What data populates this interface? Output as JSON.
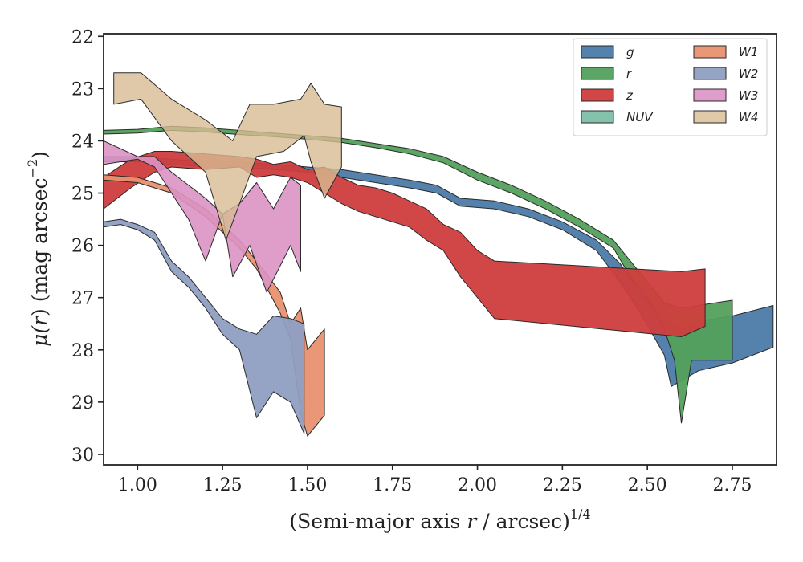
{
  "chart_data": {
    "type": "area",
    "xlabel_main": "(Semi-major axis ",
    "xlabel_var": "r",
    "xlabel_tail": " / arcsec)",
    "xlabel_sup": "1/4",
    "ylabel_main": "μ(",
    "ylabel_var": "r",
    "ylabel_tail": ") (mag arcsec",
    "ylabel_sup": "−2",
    "ylabel_close": ")",
    "xlim": [
      0.9,
      2.88
    ],
    "ylim": [
      30.2,
      21.95
    ],
    "y_inverted": true,
    "xticks": [
      1.0,
      1.25,
      1.5,
      1.75,
      2.0,
      2.25,
      2.5,
      2.75
    ],
    "xtick_labels": [
      "1.00",
      "1.25",
      "1.50",
      "1.75",
      "2.00",
      "2.25",
      "2.50",
      "2.75"
    ],
    "yticks": [
      22,
      23,
      24,
      25,
      26,
      27,
      28,
      29,
      30
    ],
    "ytick_labels": [
      "22",
      "23",
      "24",
      "25",
      "26",
      "27",
      "28",
      "29",
      "30"
    ],
    "grid": false,
    "legend_position": "top-right",
    "legend_columns": 2,
    "series": [
      {
        "name": "g",
        "color": "#4c7ba8",
        "opacity": 0.95,
        "upper": [
          [
            0.9,
            24.3
          ],
          [
            1.0,
            24.3
          ],
          [
            1.1,
            24.35
          ],
          [
            1.2,
            24.4
          ],
          [
            1.3,
            24.4
          ],
          [
            1.4,
            24.45
          ],
          [
            1.5,
            24.5
          ],
          [
            1.6,
            24.55
          ],
          [
            1.7,
            24.65
          ],
          [
            1.8,
            24.75
          ],
          [
            1.88,
            24.85
          ],
          [
            1.95,
            25.1
          ],
          [
            2.05,
            25.15
          ],
          [
            2.15,
            25.3
          ],
          [
            2.25,
            25.55
          ],
          [
            2.35,
            25.9
          ],
          [
            2.42,
            26.35
          ],
          [
            2.48,
            26.9
          ],
          [
            2.55,
            27.4
          ],
          [
            2.6,
            27.6
          ],
          [
            2.65,
            27.45
          ],
          [
            2.75,
            27.35
          ],
          [
            2.87,
            27.15
          ]
        ],
        "lower": [
          [
            0.9,
            24.4
          ],
          [
            1.0,
            24.4
          ],
          [
            1.1,
            24.45
          ],
          [
            1.2,
            24.5
          ],
          [
            1.3,
            24.5
          ],
          [
            1.4,
            24.55
          ],
          [
            1.5,
            24.6
          ],
          [
            1.6,
            24.7
          ],
          [
            1.7,
            24.8
          ],
          [
            1.8,
            24.9
          ],
          [
            1.88,
            25.0
          ],
          [
            1.95,
            25.25
          ],
          [
            2.05,
            25.3
          ],
          [
            2.15,
            25.45
          ],
          [
            2.25,
            25.7
          ],
          [
            2.35,
            26.1
          ],
          [
            2.42,
            26.7
          ],
          [
            2.48,
            27.3
          ],
          [
            2.55,
            28.1
          ],
          [
            2.57,
            28.7
          ],
          [
            2.65,
            28.4
          ],
          [
            2.75,
            28.25
          ],
          [
            2.87,
            27.95
          ]
        ]
      },
      {
        "name": "r",
        "color": "#53a05c",
        "opacity": 0.95,
        "upper": [
          [
            0.9,
            23.8
          ],
          [
            1.0,
            23.78
          ],
          [
            1.1,
            23.72
          ],
          [
            1.2,
            23.75
          ],
          [
            1.3,
            23.8
          ],
          [
            1.4,
            23.85
          ],
          [
            1.5,
            23.9
          ],
          [
            1.6,
            23.95
          ],
          [
            1.7,
            24.05
          ],
          [
            1.8,
            24.15
          ],
          [
            1.9,
            24.3
          ],
          [
            2.0,
            24.6
          ],
          [
            2.1,
            24.85
          ],
          [
            2.2,
            25.15
          ],
          [
            2.3,
            25.5
          ],
          [
            2.4,
            25.9
          ],
          [
            2.45,
            26.3
          ],
          [
            2.5,
            26.7
          ],
          [
            2.55,
            27.1
          ],
          [
            2.6,
            27.2
          ],
          [
            2.75,
            27.05
          ]
        ],
        "lower": [
          [
            0.9,
            23.87
          ],
          [
            1.0,
            23.85
          ],
          [
            1.1,
            23.8
          ],
          [
            1.2,
            23.83
          ],
          [
            1.3,
            23.88
          ],
          [
            1.4,
            23.92
          ],
          [
            1.5,
            23.97
          ],
          [
            1.6,
            24.03
          ],
          [
            1.7,
            24.13
          ],
          [
            1.8,
            24.25
          ],
          [
            1.9,
            24.42
          ],
          [
            2.0,
            24.75
          ],
          [
            2.1,
            25.0
          ],
          [
            2.2,
            25.3
          ],
          [
            2.3,
            25.65
          ],
          [
            2.4,
            26.05
          ],
          [
            2.45,
            26.6
          ],
          [
            2.5,
            27.0
          ],
          [
            2.55,
            27.6
          ],
          [
            2.58,
            28.2
          ],
          [
            2.6,
            29.4
          ],
          [
            2.63,
            28.2
          ],
          [
            2.75,
            28.2
          ]
        ]
      },
      {
        "name": "z",
        "color": "#cf3d3d",
        "opacity": 0.95,
        "upper": [
          [
            0.9,
            24.7
          ],
          [
            0.98,
            24.35
          ],
          [
            1.05,
            24.2
          ],
          [
            1.1,
            24.2
          ],
          [
            1.2,
            24.25
          ],
          [
            1.3,
            24.3
          ],
          [
            1.35,
            24.35
          ],
          [
            1.4,
            24.45
          ],
          [
            1.45,
            24.4
          ],
          [
            1.5,
            24.55
          ],
          [
            1.55,
            24.5
          ],
          [
            1.6,
            24.7
          ],
          [
            1.65,
            24.85
          ],
          [
            1.7,
            24.9
          ],
          [
            1.75,
            25.0
          ],
          [
            1.8,
            25.15
          ],
          [
            1.85,
            25.3
          ],
          [
            1.9,
            25.6
          ],
          [
            1.95,
            25.75
          ],
          [
            2.0,
            26.1
          ],
          [
            2.05,
            26.3
          ],
          [
            2.6,
            26.5
          ],
          [
            2.67,
            26.45
          ]
        ],
        "lower": [
          [
            0.9,
            25.3
          ],
          [
            0.98,
            24.9
          ],
          [
            1.05,
            24.6
          ],
          [
            1.1,
            24.5
          ],
          [
            1.2,
            24.55
          ],
          [
            1.3,
            24.5
          ],
          [
            1.35,
            24.7
          ],
          [
            1.4,
            24.65
          ],
          [
            1.45,
            24.7
          ],
          [
            1.5,
            24.8
          ],
          [
            1.55,
            25.0
          ],
          [
            1.6,
            25.2
          ],
          [
            1.65,
            25.35
          ],
          [
            1.7,
            25.45
          ],
          [
            1.75,
            25.55
          ],
          [
            1.8,
            25.65
          ],
          [
            1.85,
            25.9
          ],
          [
            1.9,
            26.1
          ],
          [
            1.95,
            26.6
          ],
          [
            2.0,
            27.0
          ],
          [
            2.05,
            27.4
          ],
          [
            2.6,
            27.75
          ],
          [
            2.67,
            27.55
          ]
        ]
      },
      {
        "name": "NUV",
        "color": "#7dbfa8",
        "opacity": 0.95,
        "upper": [],
        "lower": []
      },
      {
        "name": "W1",
        "color": "#e8916f",
        "opacity": 0.95,
        "upper": [
          [
            0.9,
            24.65
          ],
          [
            1.0,
            24.7
          ],
          [
            1.1,
            24.9
          ],
          [
            1.2,
            25.3
          ],
          [
            1.3,
            25.9
          ],
          [
            1.35,
            26.3
          ],
          [
            1.42,
            26.9
          ],
          [
            1.45,
            27.5
          ],
          [
            1.48,
            27.2
          ],
          [
            1.5,
            28.0
          ],
          [
            1.55,
            27.6
          ]
        ],
        "lower": [
          [
            0.9,
            24.75
          ],
          [
            1.0,
            24.8
          ],
          [
            1.1,
            25.0
          ],
          [
            1.2,
            25.45
          ],
          [
            1.3,
            26.05
          ],
          [
            1.35,
            26.45
          ],
          [
            1.42,
            27.3
          ],
          [
            1.45,
            27.8
          ],
          [
            1.48,
            29.2
          ],
          [
            1.5,
            29.65
          ],
          [
            1.55,
            29.25
          ]
        ]
      },
      {
        "name": "W2",
        "color": "#8f9ec2",
        "opacity": 0.95,
        "upper": [
          [
            0.9,
            25.55
          ],
          [
            0.95,
            25.5
          ],
          [
            1.0,
            25.6
          ],
          [
            1.05,
            25.75
          ],
          [
            1.1,
            26.3
          ],
          [
            1.15,
            26.6
          ],
          [
            1.2,
            27.0
          ],
          [
            1.25,
            27.4
          ],
          [
            1.3,
            27.6
          ],
          [
            1.35,
            27.7
          ],
          [
            1.4,
            27.35
          ],
          [
            1.45,
            27.4
          ],
          [
            1.49,
            27.5
          ]
        ],
        "lower": [
          [
            0.9,
            25.65
          ],
          [
            0.95,
            25.6
          ],
          [
            1.0,
            25.7
          ],
          [
            1.05,
            25.9
          ],
          [
            1.1,
            26.5
          ],
          [
            1.15,
            26.8
          ],
          [
            1.2,
            27.2
          ],
          [
            1.25,
            27.7
          ],
          [
            1.3,
            28.0
          ],
          [
            1.35,
            29.3
          ],
          [
            1.4,
            28.8
          ],
          [
            1.45,
            29.0
          ],
          [
            1.49,
            29.6
          ]
        ]
      },
      {
        "name": "W3",
        "color": "#dc92c3",
        "opacity": 0.9,
        "upper": [
          [
            0.9,
            24.0
          ],
          [
            1.0,
            24.3
          ],
          [
            1.05,
            24.3
          ],
          [
            1.1,
            24.6
          ],
          [
            1.2,
            25.1
          ],
          [
            1.25,
            25.4
          ],
          [
            1.3,
            25.2
          ],
          [
            1.35,
            24.8
          ],
          [
            1.4,
            25.3
          ],
          [
            1.45,
            24.7
          ],
          [
            1.48,
            24.85
          ]
        ],
        "lower": [
          [
            0.9,
            24.45
          ],
          [
            1.0,
            24.35
          ],
          [
            1.05,
            24.5
          ],
          [
            1.1,
            25.0
          ],
          [
            1.15,
            25.5
          ],
          [
            1.2,
            26.3
          ],
          [
            1.25,
            25.4
          ],
          [
            1.28,
            26.6
          ],
          [
            1.33,
            26.0
          ],
          [
            1.38,
            26.9
          ],
          [
            1.45,
            26.0
          ],
          [
            1.48,
            26.5
          ]
        ]
      },
      {
        "name": "W4",
        "color": "#d8bc92",
        "opacity": 0.8,
        "upper": [
          [
            0.93,
            22.7
          ],
          [
            1.01,
            22.7
          ],
          [
            1.1,
            23.2
          ],
          [
            1.2,
            23.6
          ],
          [
            1.28,
            24.0
          ],
          [
            1.33,
            23.3
          ],
          [
            1.4,
            23.3
          ],
          [
            1.48,
            23.2
          ],
          [
            1.51,
            22.9
          ],
          [
            1.55,
            23.3
          ],
          [
            1.6,
            23.35
          ]
        ],
        "lower": [
          [
            0.93,
            23.3
          ],
          [
            1.01,
            23.2
          ],
          [
            1.1,
            24.0
          ],
          [
            1.2,
            24.6
          ],
          [
            1.26,
            25.9
          ],
          [
            1.3,
            25.2
          ],
          [
            1.35,
            24.3
          ],
          [
            1.43,
            24.2
          ],
          [
            1.49,
            23.9
          ],
          [
            1.51,
            24.4
          ],
          [
            1.55,
            25.1
          ],
          [
            1.6,
            24.5
          ]
        ]
      }
    ]
  }
}
